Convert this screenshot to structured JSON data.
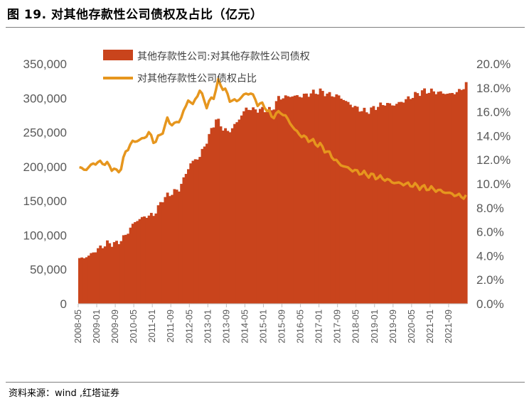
{
  "figure": {
    "title": "图 19. 对其他存款性公司债权及占比（亿元）",
    "source": "资料来源：wind ,红塔证券"
  },
  "colors": {
    "bar": "#c9441c",
    "line": "#e6961e",
    "axis": "#bfbfbf",
    "tick_text": "#595959"
  },
  "chart_data": {
    "type": "bar+line",
    "x_tick_labels": [
      "2008-05",
      "2009-01",
      "2009-09",
      "2010-05",
      "2011-01",
      "2011-09",
      "2012-05",
      "2013-01",
      "2013-09",
      "2014-05",
      "2015-01",
      "2015-09",
      "2016-05",
      "2017-01",
      "2017-09",
      "2018-05",
      "2019-01",
      "2019-09",
      "2020-05",
      "2021-01",
      "2021-09"
    ],
    "x_range": [
      "2008-05",
      "2022-05"
    ],
    "y_left": {
      "range": [
        0,
        350000
      ],
      "ticks": [
        "0",
        "50,000",
        "100,000",
        "150,000",
        "200,000",
        "250,000",
        "300,000",
        "350,000"
      ]
    },
    "y_right": {
      "range": [
        0,
        20
      ],
      "unit": "%",
      "ticks": [
        "0.0%",
        "2.0%",
        "4.0%",
        "6.0%",
        "8.0%",
        "10.0%",
        "12.0%",
        "14.0%",
        "16.0%",
        "18.0%",
        "20.0%"
      ]
    },
    "legend_position": "top",
    "series": [
      {
        "name": "其他存款性公司:对其他存款性公司债权",
        "type": "bar",
        "axis": "left",
        "keypoints": [
          [
            "2008-05",
            65000
          ],
          [
            "2008-09",
            70000
          ],
          [
            "2009-01",
            80000
          ],
          [
            "2009-05",
            88000
          ],
          [
            "2009-09",
            88000
          ],
          [
            "2009-12",
            96000
          ],
          [
            "2010-03",
            110000
          ],
          [
            "2010-05",
            120000
          ],
          [
            "2010-09",
            127000
          ],
          [
            "2011-01",
            130000
          ],
          [
            "2011-03",
            140000
          ],
          [
            "2011-05",
            153000
          ],
          [
            "2011-09",
            162000
          ],
          [
            "2011-12",
            167000
          ],
          [
            "2012-03",
            190000
          ],
          [
            "2012-05",
            205000
          ],
          [
            "2012-09",
            215000
          ],
          [
            "2013-01",
            245000
          ],
          [
            "2013-04",
            270000
          ],
          [
            "2013-06",
            260000
          ],
          [
            "2013-09",
            250000
          ],
          [
            "2013-12",
            260000
          ],
          [
            "2014-03",
            275000
          ],
          [
            "2014-05",
            285000
          ],
          [
            "2014-09",
            283000
          ],
          [
            "2015-01",
            283000
          ],
          [
            "2015-04",
            282000
          ],
          [
            "2015-07",
            300000
          ],
          [
            "2015-12",
            303000
          ],
          [
            "2016-05",
            303000
          ],
          [
            "2016-09",
            307000
          ],
          [
            "2017-01",
            310000
          ],
          [
            "2017-05",
            305000
          ],
          [
            "2017-09",
            303000
          ],
          [
            "2018-01",
            293000
          ],
          [
            "2018-05",
            285000
          ],
          [
            "2018-09",
            280000
          ],
          [
            "2019-01",
            287000
          ],
          [
            "2019-05",
            292000
          ],
          [
            "2019-09",
            290000
          ],
          [
            "2020-01",
            296000
          ],
          [
            "2020-05",
            303000
          ],
          [
            "2020-09",
            310000
          ],
          [
            "2021-01",
            310000
          ],
          [
            "2021-05",
            308000
          ],
          [
            "2021-09",
            306000
          ],
          [
            "2022-01",
            310000
          ],
          [
            "2022-04",
            320000
          ]
        ]
      },
      {
        "name": "对其他存款性公司债权占比",
        "type": "line",
        "axis": "right",
        "keypoints": [
          [
            "2008-05",
            11.3
          ],
          [
            "2008-08",
            11.2
          ],
          [
            "2008-11",
            11.7
          ],
          [
            "2009-03",
            11.8
          ],
          [
            "2009-06",
            11.5
          ],
          [
            "2009-09",
            11.0
          ],
          [
            "2009-11",
            11.3
          ],
          [
            "2010-01",
            12.7
          ],
          [
            "2010-04",
            13.5
          ],
          [
            "2010-06",
            13.6
          ],
          [
            "2010-09",
            13.8
          ],
          [
            "2010-11",
            14.3
          ],
          [
            "2011-01",
            13.5
          ],
          [
            "2011-04",
            14.0
          ],
          [
            "2011-07",
            15.3
          ],
          [
            "2011-10",
            14.9
          ],
          [
            "2012-01",
            15.5
          ],
          [
            "2012-04",
            17.0
          ],
          [
            "2012-06",
            16.6
          ],
          [
            "2012-09",
            17.8
          ],
          [
            "2012-12",
            16.5
          ],
          [
            "2013-03",
            17.3
          ],
          [
            "2013-05",
            18.5
          ],
          [
            "2013-08",
            17.8
          ],
          [
            "2013-10",
            17.0
          ],
          [
            "2014-01",
            16.9
          ],
          [
            "2014-04",
            17.4
          ],
          [
            "2014-07",
            17.6
          ],
          [
            "2014-10",
            16.7
          ],
          [
            "2015-01",
            16.5
          ],
          [
            "2015-04",
            15.6
          ],
          [
            "2015-08",
            16.0
          ],
          [
            "2015-11",
            15.4
          ],
          [
            "2016-02",
            14.5
          ],
          [
            "2016-05",
            14.0
          ],
          [
            "2016-09",
            13.6
          ],
          [
            "2017-01",
            13.2
          ],
          [
            "2017-05",
            12.5
          ],
          [
            "2017-09",
            11.7
          ],
          [
            "2018-01",
            11.3
          ],
          [
            "2018-05",
            11.0
          ],
          [
            "2018-09",
            10.8
          ],
          [
            "2019-01",
            10.6
          ],
          [
            "2019-05",
            10.4
          ],
          [
            "2019-09",
            10.1
          ],
          [
            "2020-01",
            10.0
          ],
          [
            "2020-05",
            9.9
          ],
          [
            "2020-09",
            9.7
          ],
          [
            "2021-01",
            9.6
          ],
          [
            "2021-05",
            9.4
          ],
          [
            "2021-09",
            9.2
          ],
          [
            "2022-01",
            9.0
          ],
          [
            "2022-04",
            8.9
          ]
        ]
      }
    ]
  }
}
